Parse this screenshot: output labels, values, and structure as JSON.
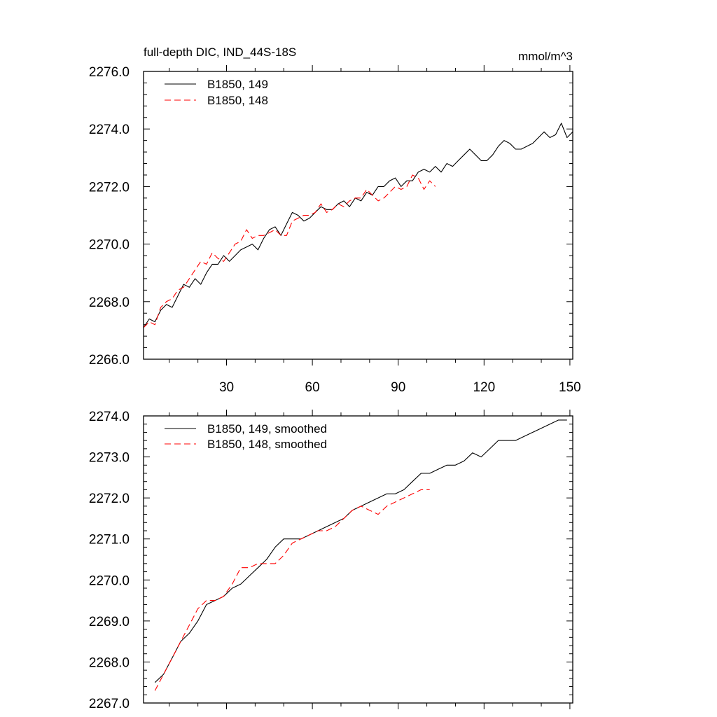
{
  "chart_data": [
    {
      "type": "line",
      "title": "full-depth DIC, IND_44S-18S",
      "units": "mmol/m^3",
      "xlim": [
        1,
        151
      ],
      "ylim": [
        2266.0,
        2276.0
      ],
      "xticks": [
        30,
        60,
        90,
        120,
        150
      ],
      "yticks": [
        "2266.0",
        "2268.0",
        "2270.0",
        "2272.0",
        "2274.0",
        "2276.0"
      ],
      "legend_position": "top-left",
      "series": [
        {
          "name": "B1850, 149",
          "color": "#000000",
          "dash": "solid",
          "x": [
            1,
            3,
            5,
            7,
            9,
            11,
            13,
            15,
            17,
            19,
            21,
            23,
            25,
            27,
            29,
            31,
            33,
            35,
            37,
            39,
            41,
            43,
            45,
            47,
            49,
            51,
            53,
            55,
            57,
            59,
            61,
            63,
            65,
            67,
            69,
            71,
            73,
            75,
            77,
            79,
            81,
            83,
            85,
            87,
            89,
            91,
            93,
            95,
            97,
            99,
            101,
            103,
            105,
            107,
            109,
            111,
            113,
            115,
            117,
            119,
            121,
            123,
            125,
            127,
            129,
            131,
            133,
            135,
            137,
            139,
            141,
            143,
            145,
            147,
            149,
            151
          ],
          "values": [
            2267.1,
            2267.4,
            2267.3,
            2267.7,
            2267.9,
            2267.8,
            2268.2,
            2268.6,
            2268.5,
            2268.8,
            2268.6,
            2269.0,
            2269.3,
            2269.3,
            2269.6,
            2269.4,
            2269.6,
            2269.8,
            2269.9,
            2270.0,
            2269.8,
            2270.2,
            2270.5,
            2270.6,
            2270.3,
            2270.7,
            2271.1,
            2271.0,
            2270.8,
            2270.9,
            2271.1,
            2271.3,
            2271.2,
            2271.2,
            2271.4,
            2271.5,
            2271.3,
            2271.6,
            2271.5,
            2271.8,
            2271.7,
            2272.0,
            2272.0,
            2272.2,
            2272.3,
            2272.0,
            2272.2,
            2272.2,
            2272.5,
            2272.6,
            2272.5,
            2272.7,
            2272.5,
            2272.8,
            2272.7,
            2272.9,
            2273.1,
            2273.3,
            2273.1,
            2272.9,
            2272.9,
            2273.1,
            2273.4,
            2273.6,
            2273.5,
            2273.3,
            2273.3,
            2273.4,
            2273.5,
            2273.7,
            2273.9,
            2273.7,
            2273.8,
            2274.2,
            2273.7,
            2273.9
          ]
        },
        {
          "name": "B1850, 148",
          "color": "#ff0000",
          "dash": "dashed",
          "x": [
            1,
            3,
            5,
            7,
            9,
            11,
            13,
            15,
            17,
            19,
            21,
            23,
            25,
            27,
            29,
            31,
            33,
            35,
            37,
            39,
            41,
            43,
            45,
            47,
            49,
            51,
            53,
            55,
            57,
            59,
            61,
            63,
            65,
            67,
            69,
            71,
            73,
            75,
            77,
            79,
            81,
            83,
            85,
            87,
            89,
            91,
            93,
            95,
            97,
            99,
            101,
            103
          ],
          "values": [
            2267.1,
            2267.3,
            2267.2,
            2267.8,
            2268.0,
            2268.1,
            2268.4,
            2268.5,
            2268.8,
            2269.1,
            2269.4,
            2269.3,
            2269.7,
            2269.5,
            2269.4,
            2269.7,
            2270.0,
            2270.1,
            2270.5,
            2270.2,
            2270.3,
            2270.3,
            2270.4,
            2270.5,
            2270.3,
            2270.3,
            2270.8,
            2270.9,
            2271.0,
            2271.0,
            2271.1,
            2271.4,
            2271.1,
            2271.2,
            2271.4,
            2271.3,
            2271.5,
            2271.6,
            2271.6,
            2271.9,
            2271.7,
            2271.5,
            2271.6,
            2271.8,
            2272.0,
            2271.9,
            2272.0,
            2272.4,
            2272.3,
            2271.9,
            2272.2,
            2272.0
          ]
        }
      ]
    },
    {
      "type": "line",
      "xlim": [
        1,
        151
      ],
      "ylim": [
        2267.0,
        2274.0
      ],
      "xticks": [
        30,
        60,
        90,
        120,
        150
      ],
      "yticks": [
        "2267.0",
        "2268.0",
        "2269.0",
        "2270.0",
        "2271.0",
        "2272.0",
        "2273.0",
        "2274.0"
      ],
      "legend_position": "top-left",
      "series": [
        {
          "name": "B1850, 149, smoothed",
          "color": "#000000",
          "dash": "solid",
          "x": [
            5,
            8,
            11,
            14,
            17,
            20,
            23,
            26,
            29,
            32,
            35,
            38,
            41,
            44,
            47,
            50,
            53,
            56,
            59,
            62,
            65,
            68,
            71,
            74,
            77,
            80,
            83,
            86,
            89,
            92,
            95,
            98,
            101,
            104,
            107,
            110,
            113,
            116,
            119,
            122,
            125,
            128,
            131,
            134,
            137,
            140,
            143,
            146,
            149
          ],
          "values": [
            2267.5,
            2267.7,
            2268.1,
            2268.5,
            2268.7,
            2269.0,
            2269.4,
            2269.5,
            2269.6,
            2269.8,
            2269.9,
            2270.1,
            2270.3,
            2270.5,
            2270.8,
            2271.0,
            2271.0,
            2271.0,
            2271.1,
            2271.2,
            2271.3,
            2271.4,
            2271.5,
            2271.7,
            2271.8,
            2271.9,
            2272.0,
            2272.1,
            2272.1,
            2272.2,
            2272.4,
            2272.6,
            2272.6,
            2272.7,
            2272.8,
            2272.8,
            2272.9,
            2273.1,
            2273.0,
            2273.2,
            2273.4,
            2273.4,
            2273.4,
            2273.5,
            2273.6,
            2273.7,
            2273.8,
            2273.9,
            2273.9
          ]
        },
        {
          "name": "B1850, 148, smoothed",
          "color": "#ff0000",
          "dash": "dashed",
          "x": [
            5,
            8,
            11,
            14,
            17,
            20,
            23,
            26,
            29,
            32,
            35,
            38,
            41,
            44,
            47,
            50,
            53,
            56,
            59,
            62,
            65,
            68,
            71,
            74,
            77,
            80,
            83,
            86,
            89,
            92,
            95,
            98,
            101
          ],
          "values": [
            2267.3,
            2267.7,
            2268.1,
            2268.5,
            2268.9,
            2269.3,
            2269.5,
            2269.5,
            2269.6,
            2269.9,
            2270.3,
            2270.3,
            2270.4,
            2270.4,
            2270.4,
            2270.6,
            2270.9,
            2271.0,
            2271.1,
            2271.2,
            2271.2,
            2271.3,
            2271.5,
            2271.7,
            2271.8,
            2271.7,
            2271.6,
            2271.8,
            2271.9,
            2272.0,
            2272.1,
            2272.2,
            2272.2
          ]
        }
      ]
    }
  ]
}
